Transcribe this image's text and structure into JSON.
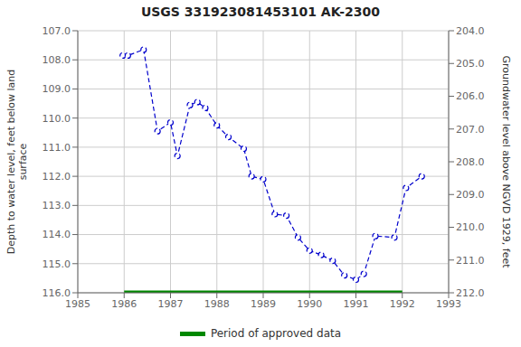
{
  "chart_data": {
    "type": "line",
    "title": "USGS 331923081453101 AK-2300",
    "ylabel": "Depth to water level, feet below land\nsurface",
    "y2label": "Groundwater level above NGVD 1929, feet",
    "xlim": [
      1985,
      1993
    ],
    "xticks": [
      1985,
      1986,
      1987,
      1988,
      1989,
      1990,
      1991,
      1992,
      1993
    ],
    "ylim": [
      116.0,
      107.0
    ],
    "yticks": [
      {
        "value": 107.0,
        "label": "107.0"
      },
      {
        "value": 108.0,
        "label": "108.0"
      },
      {
        "value": 109.0,
        "label": "109.0"
      },
      {
        "value": 110.0,
        "label": "110.0"
      },
      {
        "value": 111.0,
        "label": "111.0"
      },
      {
        "value": 112.0,
        "label": "112.0"
      },
      {
        "value": 113.0,
        "label": "113.0"
      },
      {
        "value": 114.0,
        "label": "114.0"
      },
      {
        "value": 115.0,
        "label": "115.0"
      },
      {
        "value": 116.0,
        "label": "116.0"
      }
    ],
    "y2lim": [
      212.0,
      204.0
    ],
    "y2ticks": [
      {
        "value": 212.0,
        "label": "212.0"
      },
      {
        "value": 211.0,
        "label": "211.0"
      },
      {
        "value": 210.0,
        "label": "210.0"
      },
      {
        "value": 209.0,
        "label": "209.0"
      },
      {
        "value": 208.0,
        "label": "208.0"
      },
      {
        "value": 207.0,
        "label": "207.0"
      },
      {
        "value": 206.0,
        "label": "206.0"
      },
      {
        "value": 205.0,
        "label": "205.0"
      },
      {
        "value": 204.0,
        "label": "204.0"
      }
    ],
    "grid": true,
    "series": [
      {
        "color": "#0000cc",
        "line_style": "dashed",
        "marker": "o",
        "x": [
          1985.97,
          1986.08,
          1986.42,
          1986.72,
          1987.0,
          1987.15,
          1987.42,
          1987.58,
          1987.75,
          1988.0,
          1988.25,
          1988.58,
          1988.75,
          1989.0,
          1989.25,
          1989.5,
          1989.75,
          1990.0,
          1990.25,
          1990.5,
          1990.75,
          1991.0,
          1991.17,
          1991.42,
          1991.83,
          1992.08,
          1992.42
        ],
        "values": [
          107.85,
          107.85,
          107.65,
          110.45,
          110.15,
          111.3,
          109.55,
          109.45,
          109.65,
          110.25,
          110.65,
          111.05,
          112.0,
          112.1,
          113.3,
          113.35,
          114.1,
          114.55,
          114.7,
          114.9,
          115.4,
          115.55,
          115.35,
          114.05,
          114.1,
          112.4,
          112.0
        ]
      },
      {
        "name": "Period of approved data",
        "color": "#008800",
        "line_style": "solid",
        "marker": "none",
        "x": [
          1986.0,
          1992.0
        ],
        "values": [
          116.0,
          116.0
        ]
      }
    ]
  }
}
